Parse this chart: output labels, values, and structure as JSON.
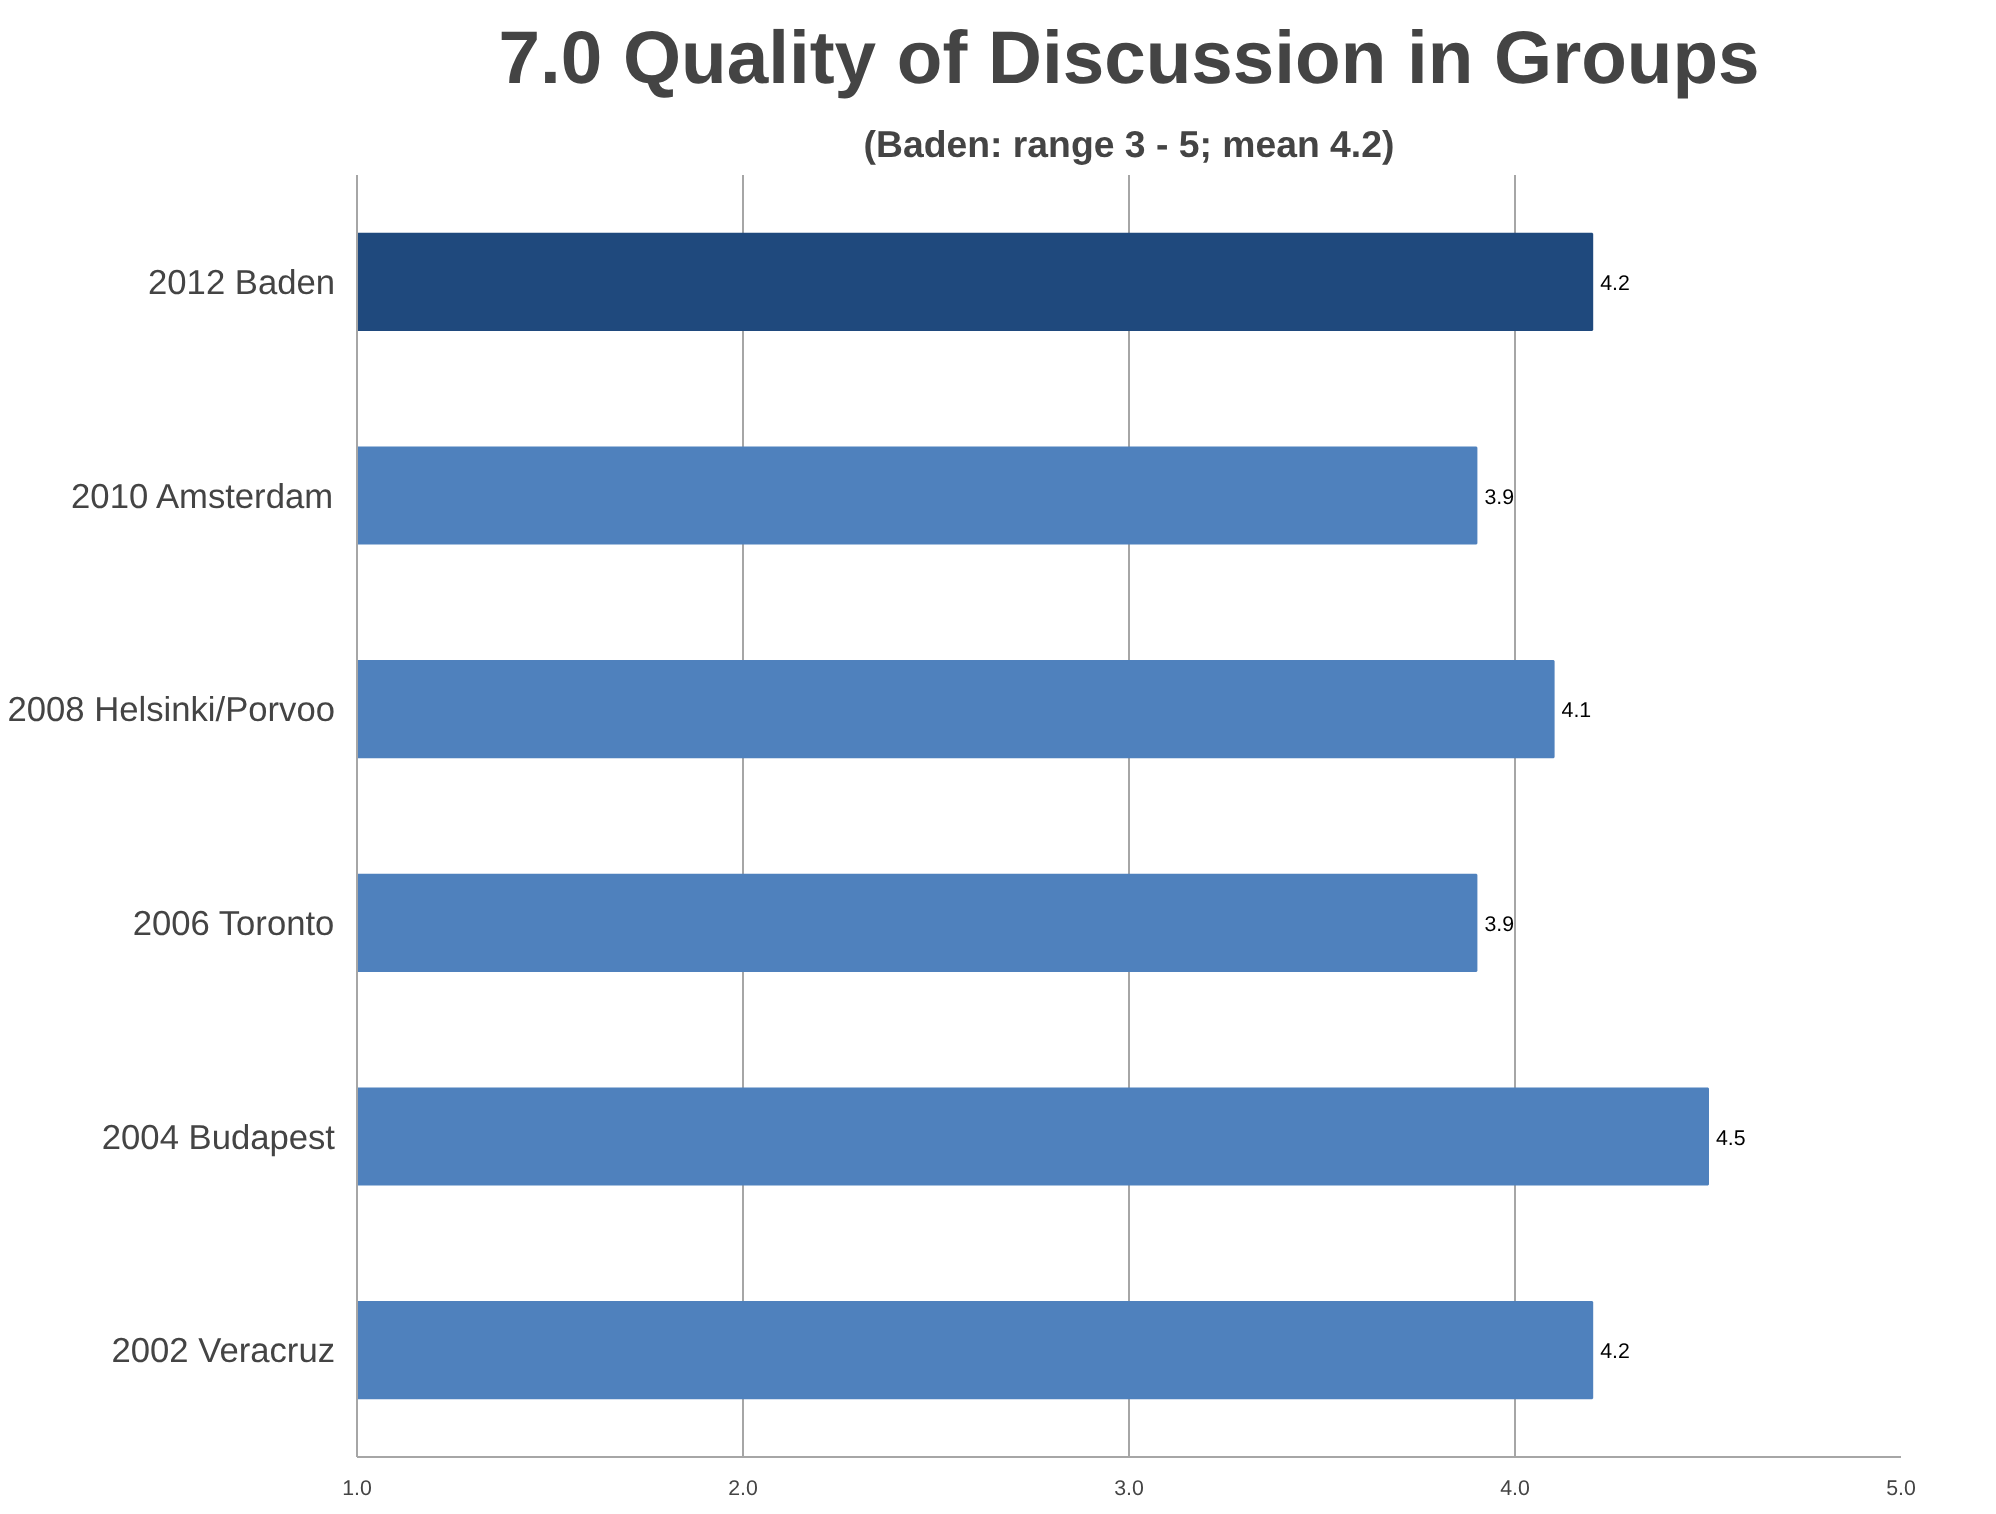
{
  "chart_data": {
    "type": "bar",
    "orientation": "horizontal",
    "title": "7.0 Quality of Discussion in Groups",
    "subtitle": "(Baden: range 3 - 5; mean 4.2)",
    "categories": [
      "2012 Baden",
      "2010 Amsterdam",
      "2008 Helsinki/Porvoo",
      "2006 Toronto",
      "2004 Budapest",
      "2002 Veracruz"
    ],
    "values": [
      4.2,
      3.9,
      4.1,
      3.9,
      4.5,
      4.2
    ],
    "colors": [
      "#1f497d",
      "#4f81bd",
      "#4f81bd",
      "#4f81bd",
      "#4f81bd",
      "#4f81bd"
    ],
    "xlim": [
      1,
      5
    ],
    "xticks": [
      {
        "value": 1,
        "label": "1.0"
      },
      {
        "value": 2,
        "label": "2.0"
      },
      {
        "value": 3,
        "label": "3.0"
      },
      {
        "value": 4,
        "label": "4.0"
      },
      {
        "value": 5,
        "label": "5.0"
      }
    ],
    "grid": "x",
    "data_labels": true
  }
}
